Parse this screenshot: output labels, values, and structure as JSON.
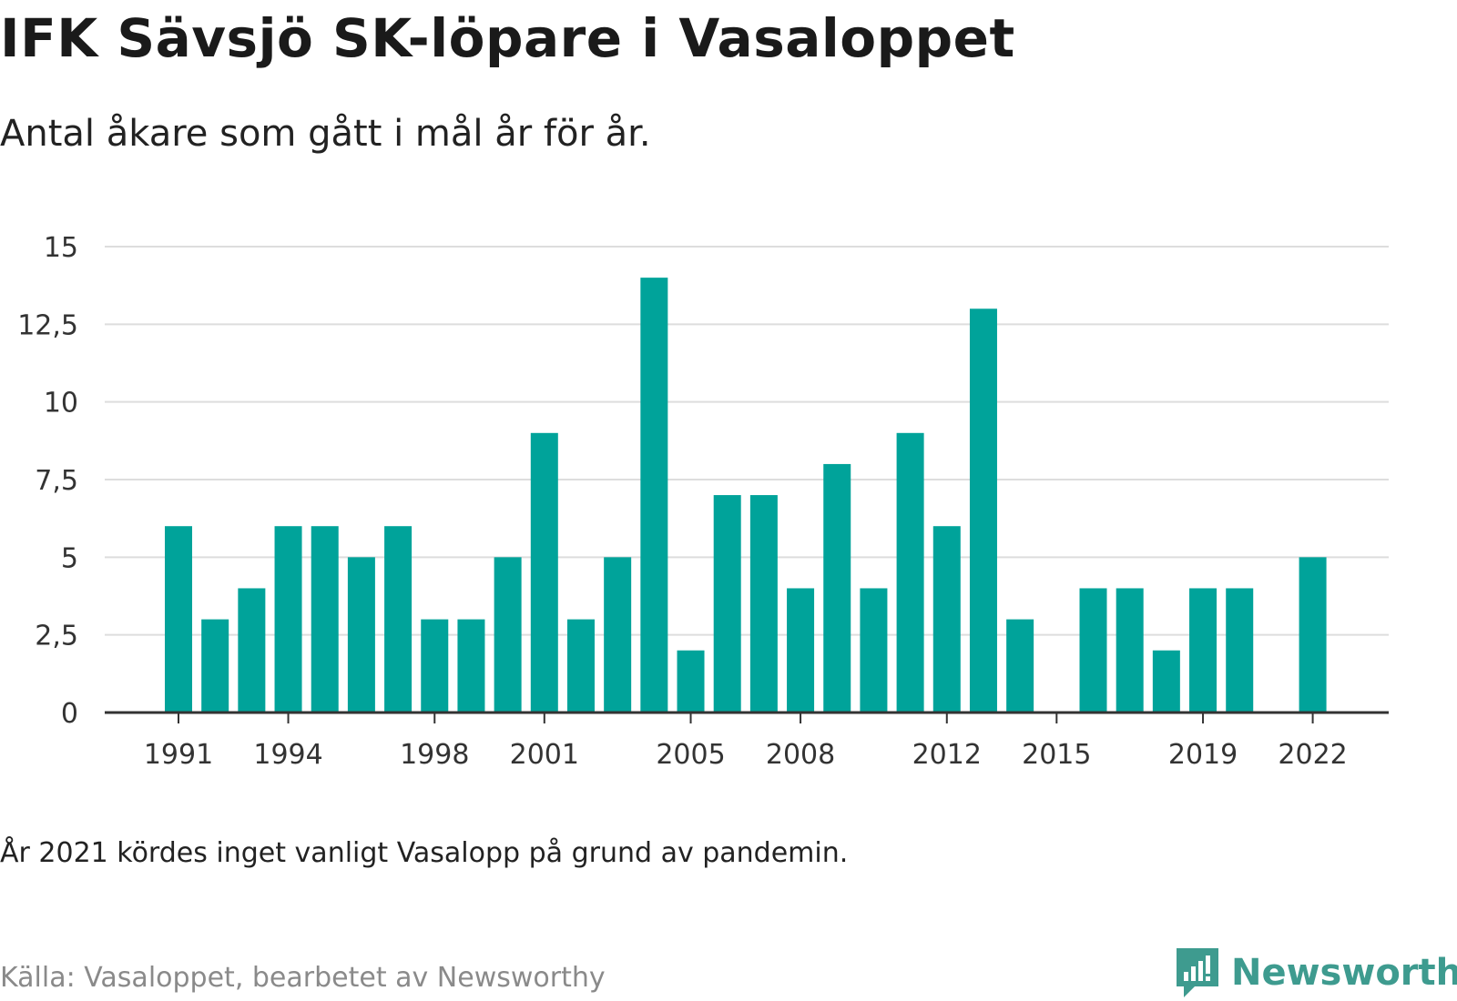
{
  "title": "IFK Sävsjö SK-löpare i Vasaloppet",
  "subtitle": "Antal åkare som gått i mål år för år.",
  "note": "År 2021 kördes inget vanligt Vasalopp på grund av pandemin.",
  "source": "Källa: Vasaloppet, bearbetet av Newsworthy",
  "logo_text": "Newsworthy",
  "colors": {
    "bar": "#00a39a",
    "grid": "#dddddd",
    "axis": "#333333",
    "logo": "#3e9b8f"
  },
  "chart_data": {
    "type": "bar",
    "title": "IFK Sävsjö SK-löpare i Vasaloppet",
    "subtitle": "Antal åkare som gått i mål år för år.",
    "xlabel": "",
    "ylabel": "",
    "x": [
      1991,
      1992,
      1993,
      1994,
      1995,
      1996,
      1997,
      1998,
      1999,
      2000,
      2001,
      2002,
      2003,
      2004,
      2005,
      2006,
      2007,
      2008,
      2009,
      2010,
      2011,
      2012,
      2013,
      2014,
      2015,
      2016,
      2017,
      2018,
      2019,
      2020,
      2021,
      2022
    ],
    "values": [
      6,
      3,
      4,
      6,
      6,
      5,
      6,
      3,
      3,
      5,
      9,
      3,
      5,
      14,
      2,
      7,
      7,
      4,
      8,
      4,
      9,
      6,
      13,
      3,
      null,
      4,
      4,
      2,
      4,
      4,
      null,
      5
    ],
    "xticks": [
      "1991",
      "1994",
      "1998",
      "2001",
      "2005",
      "2008",
      "2012",
      "2015",
      "2019",
      "2022"
    ],
    "yticks": [
      "0",
      "2,5",
      "5",
      "7,5",
      "10",
      "12,5",
      "15"
    ],
    "ylim": [
      0,
      15
    ],
    "grid": true,
    "legend": "none"
  }
}
